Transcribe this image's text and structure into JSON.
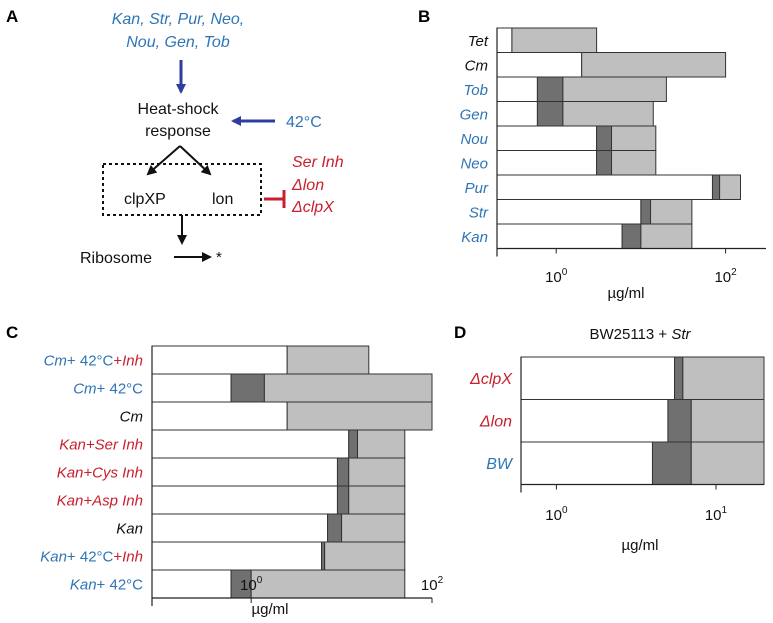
{
  "colors": {
    "blue": "#2e75b6",
    "red": "#c8202f",
    "dark_gray": "#707070",
    "light_gray": "#bfbfbf",
    "arrow_blue": "#2f3e9e"
  },
  "panel_a": {
    "label": "A",
    "antibiotics_line1": "Kan, Str, Pur, Neo,",
    "antibiotics_line2": "Nou, Gen, Tob",
    "hs_line1": "Heat-shock",
    "hs_line2": "response",
    "temperature": "42°C",
    "protease1": "clpXP",
    "protease2": "lon",
    "inhibitor1": "Ser Inh",
    "inhibitor2": "Δlon",
    "inhibitor3": "ΔclpX",
    "ribosome": "Ribosome",
    "star": "*"
  },
  "chart_data": [
    {
      "panel": "B",
      "type": "bar",
      "scale": "log",
      "xlim": [
        0.2,
        300
      ],
      "xticks": [
        {
          "value": 1,
          "base": "10",
          "exp": "0"
        },
        {
          "value": 100,
          "base": "10",
          "exp": "2"
        }
      ],
      "xlabel": "µg/ml",
      "rows": [
        {
          "label": "Tet",
          "color": "black",
          "white_end": 0.3,
          "dark_end": 0.3,
          "light_end": 3
        },
        {
          "label": "Cm",
          "color": "black",
          "white_end": 2,
          "dark_end": 2,
          "light_end": 100
        },
        {
          "label": "Tob",
          "color": "blue",
          "white_end": 0.6,
          "dark_end": 1.2,
          "light_end": 20
        },
        {
          "label": "Gen",
          "color": "blue",
          "white_end": 0.6,
          "dark_end": 1.2,
          "light_end": 14
        },
        {
          "label": "Nou",
          "color": "blue",
          "white_end": 3,
          "dark_end": 4.5,
          "light_end": 15
        },
        {
          "label": "Neo",
          "color": "blue",
          "white_end": 3,
          "dark_end": 4.5,
          "light_end": 15
        },
        {
          "label": "Pur",
          "color": "blue",
          "white_end": 70,
          "dark_end": 85,
          "light_end": 150
        },
        {
          "label": "Str",
          "color": "blue",
          "white_end": 10,
          "dark_end": 13,
          "light_end": 40
        },
        {
          "label": "Kan",
          "color": "blue",
          "white_end": 6,
          "dark_end": 10,
          "light_end": 40
        }
      ]
    },
    {
      "panel": "C",
      "type": "bar",
      "scale": "log",
      "xlim": [
        0.08,
        100
      ],
      "xticks": [
        {
          "value": 1,
          "base": "10",
          "exp": "0"
        },
        {
          "value": 100,
          "base": "10",
          "exp": "2"
        }
      ],
      "xlabel": "µg/ml",
      "rows": [
        {
          "parts": [
            {
              "t": "Cm",
              "c": "blue",
              "i": true
            },
            {
              "t": "+ 42°C",
              "c": "blue",
              "i": false
            },
            {
              "t": "+",
              "c": "red",
              "i": false
            },
            {
              "t": "Inh",
              "c": "red",
              "i": true
            }
          ],
          "white_end": 2.5,
          "dark_end": 2.5,
          "light_end": 20
        },
        {
          "parts": [
            {
              "t": "Cm",
              "c": "blue",
              "i": true
            },
            {
              "t": "+ 42°C",
              "c": "blue",
              "i": false
            }
          ],
          "white_end": 0.6,
          "dark_end": 1.4,
          "light_end": 100
        },
        {
          "parts": [
            {
              "t": "Cm",
              "c": "black",
              "i": true
            }
          ],
          "white_end": 2.5,
          "dark_end": 2.5,
          "light_end": 100
        },
        {
          "parts": [
            {
              "t": "Kan+Ser Inh",
              "c": "red",
              "i": true
            }
          ],
          "white_end": 12,
          "dark_end": 15,
          "light_end": 50
        },
        {
          "parts": [
            {
              "t": "Kan+Cys Inh",
              "c": "red",
              "i": true
            }
          ],
          "white_end": 9,
          "dark_end": 12,
          "light_end": 50
        },
        {
          "parts": [
            {
              "t": "Kan+Asp Inh",
              "c": "red",
              "i": true
            }
          ],
          "white_end": 9,
          "dark_end": 12,
          "light_end": 50
        },
        {
          "parts": [
            {
              "t": "Kan",
              "c": "black",
              "i": true
            }
          ],
          "white_end": 7,
          "dark_end": 10,
          "light_end": 50
        },
        {
          "parts": [
            {
              "t": "Kan",
              "c": "blue",
              "i": true
            },
            {
              "t": "+ 42°C",
              "c": "blue",
              "i": false
            },
            {
              "t": "+",
              "c": "red",
              "i": false
            },
            {
              "t": "Inh",
              "c": "red",
              "i": true
            }
          ],
          "white_end": 6,
          "dark_end": 6.5,
          "light_end": 50
        },
        {
          "parts": [
            {
              "t": "Kan",
              "c": "blue",
              "i": true
            },
            {
              "t": "+ 42°C",
              "c": "blue",
              "i": false
            }
          ],
          "white_end": 0.6,
          "dark_end": 1,
          "light_end": 50
        }
      ]
    },
    {
      "panel": "D",
      "type": "bar",
      "scale": "log",
      "xlim": [
        0.6,
        20
      ],
      "xticks": [
        {
          "value": 1,
          "base": "10",
          "exp": "0"
        },
        {
          "value": 10,
          "base": "10",
          "exp": "1"
        }
      ],
      "xlabel": "µg/ml",
      "title_main": "BW25113",
      "title_plus": " + ",
      "title_ital": "Str",
      "rows": [
        {
          "label": "ΔclpX",
          "color": "red",
          "white_end": 5.5,
          "dark_end": 6.2,
          "light_end": 20
        },
        {
          "label": "Δlon",
          "color": "red",
          "white_end": 5,
          "dark_end": 7,
          "light_end": 20
        },
        {
          "label": "BW",
          "color": "blue",
          "white_end": 4,
          "dark_end": 7,
          "light_end": 20
        }
      ]
    }
  ]
}
